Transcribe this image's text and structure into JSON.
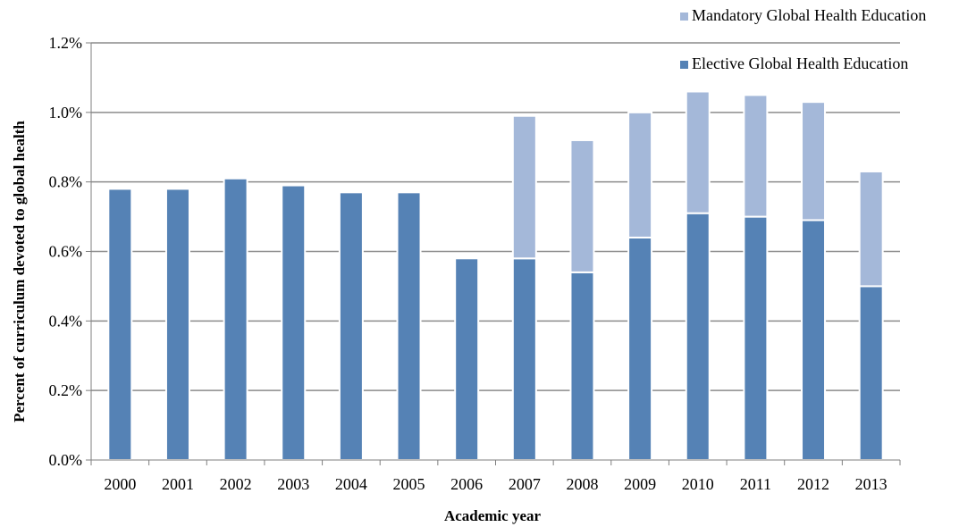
{
  "chart_data": {
    "type": "bar",
    "stacked": true,
    "title": "",
    "xlabel": "Academic year",
    "ylabel": "Percent of curriculum devoted to global health",
    "ylim": [
      0,
      1.2
    ],
    "y_ticks": [
      "0.0%",
      "0.2%",
      "0.4%",
      "0.6%",
      "0.8%",
      "1.0%",
      "1.2%"
    ],
    "y_tick_values": [
      0,
      0.2,
      0.4,
      0.6,
      0.8,
      1.0,
      1.2
    ],
    "grid": true,
    "legend_position": "top-right",
    "categories": [
      "2000",
      "2001",
      "2002",
      "2003",
      "2004",
      "2005",
      "2006",
      "2007",
      "2008",
      "2009",
      "2010",
      "2011",
      "2012",
      "2013"
    ],
    "series": [
      {
        "name": "Elective Global Health Education",
        "color": "#5582b5",
        "values": [
          0.78,
          0.78,
          0.81,
          0.79,
          0.77,
          0.77,
          0.58,
          0.58,
          0.54,
          0.64,
          0.71,
          0.7,
          0.69,
          0.5
        ]
      },
      {
        "name": "Mandatory Global Health Education",
        "color": "#a4b8d9",
        "values": [
          0,
          0,
          0,
          0,
          0,
          0,
          0,
          0.41,
          0.38,
          0.36,
          0.35,
          0.35,
          0.34,
          0.33
        ]
      }
    ],
    "legend_order": [
      1,
      0
    ]
  }
}
